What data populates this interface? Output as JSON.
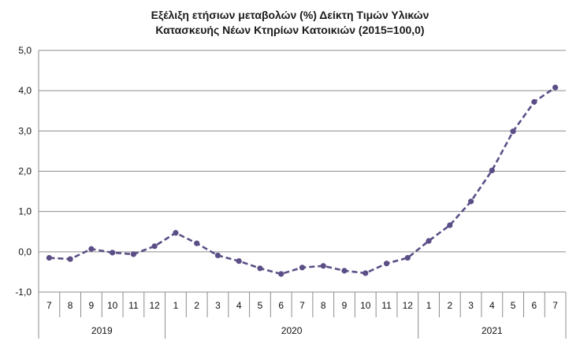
{
  "chart_data": {
    "type": "line",
    "title": "Εξέλιξη ετήσιων μεταβολών (%) Δείκτη Τιμών Υλικών",
    "subtitle": "Κατασκευής Νέων Κτηρίων Κατοικιών (2015=100,0)",
    "ylim": [
      -1.0,
      5.0
    ],
    "yticks": [
      "-1,0",
      "0,0",
      "1,0",
      "2,0",
      "3,0",
      "4,0",
      "5,0"
    ],
    "categories": [
      "7",
      "8",
      "9",
      "10",
      "11",
      "12",
      "1",
      "2",
      "3",
      "4",
      "5",
      "6",
      "7",
      "8",
      "9",
      "10",
      "11",
      "12",
      "1",
      "2",
      "3",
      "4",
      "5",
      "6",
      "7"
    ],
    "years": [
      {
        "label": "2019",
        "count": 6
      },
      {
        "label": "2020",
        "count": 12
      },
      {
        "label": "2021",
        "count": 7
      }
    ],
    "values": [
      -0.15,
      -0.18,
      0.07,
      -0.02,
      -0.06,
      0.14,
      0.47,
      0.21,
      -0.09,
      -0.23,
      -0.41,
      -0.55,
      -0.39,
      -0.35,
      -0.47,
      -0.53,
      -0.29,
      -0.15,
      0.27,
      0.66,
      1.25,
      2.02,
      2.99,
      3.72,
      4.08
    ],
    "grid": true,
    "line_style": "dashed",
    "color": "#5b4e86"
  }
}
